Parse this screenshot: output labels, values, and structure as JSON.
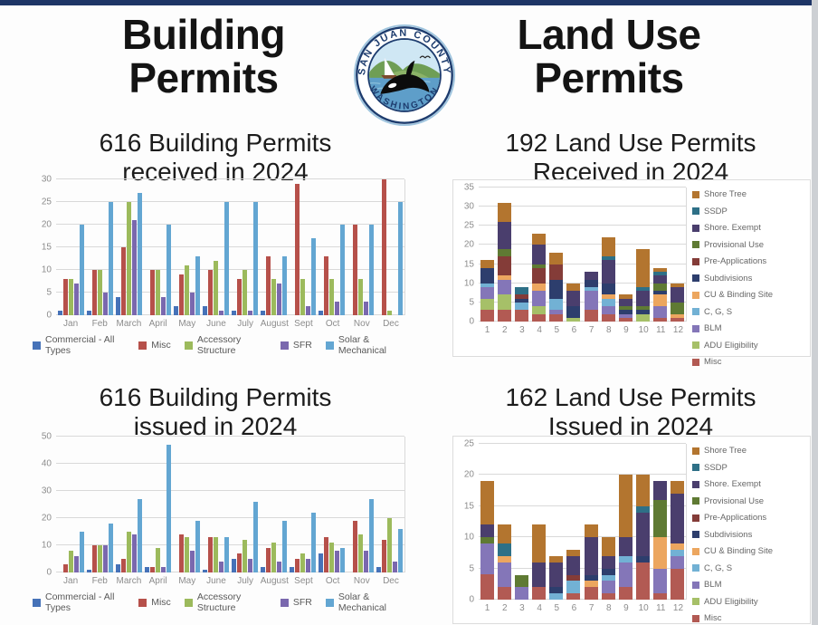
{
  "colors": {
    "accent_navy": "#1e3566",
    "logo_navy": "#1d3c6e",
    "axis_text": "#8c8c8c",
    "gridline": "#d9d9d9"
  },
  "header": {
    "left_title_line1": "Building",
    "left_title_line2": "Permits",
    "right_title_line1": "Land Use",
    "right_title_line2": "Permits"
  },
  "logo": {
    "arc_top": "SAN JUAN COUNTY",
    "arc_bottom": "WASHINGTON"
  },
  "chart_data": [
    {
      "type": "bar",
      "variant": "grouped",
      "title_line1": "616 Building Permits",
      "title_line2": "received in 2024",
      "ylim": [
        0,
        30
      ],
      "ystep": 5,
      "grid": true,
      "legend_position": "bottom",
      "categories": [
        "Jan",
        "Feb",
        "March",
        "April",
        "May",
        "June",
        "July",
        "August",
        "Sept",
        "Oct",
        "Nov",
        "Dec"
      ],
      "series": [
        {
          "name": "Commercial - All Types",
          "color": "#4672b8",
          "values": [
            1,
            1,
            4,
            0,
            2,
            2,
            1,
            1,
            0,
            1,
            0,
            0
          ]
        },
        {
          "name": "Misc",
          "color": "#b6504a",
          "values": [
            8,
            10,
            15,
            10,
            9,
            10,
            8,
            13,
            29,
            13,
            20,
            30
          ]
        },
        {
          "name": "Accessory Structure",
          "color": "#9cba5c",
          "values": [
            8,
            10,
            25,
            10,
            11,
            12,
            10,
            8,
            8,
            8,
            8,
            1
          ]
        },
        {
          "name": "SFR",
          "color": "#7a68ae",
          "values": [
            7,
            5,
            21,
            4,
            5,
            1,
            1,
            7,
            2,
            3,
            3,
            0
          ]
        },
        {
          "name": "Solar & Mechanical",
          "color": "#63a6d2",
          "values": [
            20,
            25,
            27,
            20,
            13,
            25,
            25,
            13,
            17,
            20,
            20,
            25
          ]
        }
      ]
    },
    {
      "type": "bar",
      "variant": "stacked",
      "title_line1": "192 Land Use Permits",
      "title_line2": "Received in 2024",
      "ylim": [
        0,
        35
      ],
      "ystep": 5,
      "grid": true,
      "legend_position": "right",
      "categories": [
        "1",
        "2",
        "3",
        "4",
        "5",
        "6",
        "7",
        "8",
        "9",
        "10",
        "11",
        "12"
      ],
      "series": [
        {
          "name": "Shore Tree",
          "color": "#b3752f",
          "values": [
            2,
            5,
            0,
            3,
            3,
            2,
            0,
            5,
            1,
            10,
            1,
            1
          ]
        },
        {
          "name": "SSDP",
          "color": "#2e7087",
          "values": [
            0,
            0,
            2,
            0,
            0,
            0,
            0,
            1,
            0,
            1,
            1,
            0
          ]
        },
        {
          "name": "Shore. Exempt",
          "color": "#4a3e6d",
          "values": [
            0,
            7,
            0,
            5,
            0,
            4,
            2,
            6,
            2,
            4,
            2,
            4
          ]
        },
        {
          "name": "Provisional Use",
          "color": "#5f7a33",
          "values": [
            0,
            2,
            0,
            1,
            0,
            0,
            0,
            0,
            1,
            1,
            2,
            3
          ]
        },
        {
          "name": "Pre-Applications",
          "color": "#843c38",
          "values": [
            0,
            5,
            1,
            4,
            4,
            0,
            0,
            0,
            0,
            0,
            0,
            0
          ]
        },
        {
          "name": "Subdivisions",
          "color": "#2d3e6d",
          "values": [
            4,
            0,
            1,
            0,
            5,
            3,
            2,
            3,
            1,
            1,
            1,
            0
          ]
        },
        {
          "name": "CU & Binding Site",
          "color": "#eca65f",
          "values": [
            0,
            1,
            0,
            2,
            0,
            0,
            0,
            1,
            0,
            0,
            3,
            1
          ]
        },
        {
          "name": "C, G, S",
          "color": "#72b1d4",
          "values": [
            1,
            0,
            2,
            0,
            3,
            0,
            1,
            2,
            0,
            0,
            0,
            0
          ]
        },
        {
          "name": "BLM",
          "color": "#8476b8",
          "values": [
            3,
            4,
            0,
            4,
            1,
            0,
            5,
            2,
            1,
            0,
            3,
            0
          ]
        },
        {
          "name": "ADU Eligibility",
          "color": "#a6c068",
          "values": [
            3,
            4,
            0,
            2,
            0,
            1,
            0,
            0,
            0,
            2,
            0,
            0
          ]
        },
        {
          "name": "Misc",
          "color": "#b25a53",
          "values": [
            3,
            3,
            3,
            2,
            2,
            0,
            3,
            2,
            1,
            0,
            1,
            1
          ]
        }
      ]
    },
    {
      "type": "bar",
      "variant": "grouped",
      "title_line1": "616 Building Permits",
      "title_line2": "issued in 2024",
      "ylim": [
        0,
        50
      ],
      "ystep": 10,
      "grid": true,
      "legend_position": "bottom",
      "categories": [
        "Jan",
        "Feb",
        "March",
        "April",
        "May",
        "June",
        "July",
        "August",
        "Sept",
        "Oct",
        "Nov",
        "Dec"
      ],
      "series": [
        {
          "name": "Commercial - All Types",
          "color": "#4672b8",
          "values": [
            0,
            1,
            3,
            2,
            0,
            1,
            5,
            2,
            2,
            7,
            0,
            2
          ]
        },
        {
          "name": "Misc",
          "color": "#b6504a",
          "values": [
            3,
            10,
            5,
            2,
            14,
            13,
            7,
            9,
            5,
            13,
            19,
            12
          ]
        },
        {
          "name": "Accessory Structure",
          "color": "#9cba5c",
          "values": [
            8,
            10,
            15,
            9,
            13,
            13,
            12,
            11,
            7,
            11,
            14,
            20
          ]
        },
        {
          "name": "SFR",
          "color": "#7a68ae",
          "values": [
            6,
            10,
            14,
            2,
            8,
            4,
            5,
            4,
            5,
            8,
            8,
            4
          ]
        },
        {
          "name": "Solar & Mechanical",
          "color": "#63a6d2",
          "values": [
            15,
            18,
            27,
            47,
            19,
            13,
            26,
            19,
            22,
            9,
            27,
            16
          ]
        }
      ]
    },
    {
      "type": "bar",
      "variant": "stacked",
      "title_line1": "162 Land Use Permits",
      "title_line2": "Issued in 2024",
      "ylim": [
        0,
        25
      ],
      "ystep": 5,
      "grid": true,
      "legend_position": "right",
      "categories": [
        "1",
        "2",
        "3",
        "4",
        "5",
        "6",
        "7",
        "8",
        "9",
        "10",
        "11",
        "12"
      ],
      "series": [
        {
          "name": "Shore Tree",
          "color": "#b3752f",
          "values": [
            7,
            3,
            0,
            6,
            1,
            1,
            2,
            3,
            10,
            5,
            0,
            2
          ]
        },
        {
          "name": "SSDP",
          "color": "#2e7087",
          "values": [
            0,
            2,
            0,
            0,
            0,
            0,
            0,
            0,
            0,
            1,
            0,
            0
          ]
        },
        {
          "name": "Shore. Exempt",
          "color": "#4a3e6d",
          "values": [
            2,
            0,
            0,
            4,
            4,
            3,
            6,
            2,
            3,
            7,
            3,
            8
          ]
        },
        {
          "name": "Provisional Use",
          "color": "#5f7a33",
          "values": [
            1,
            0,
            2,
            0,
            0,
            0,
            0,
            0,
            0,
            0,
            6,
            0
          ]
        },
        {
          "name": "Pre-Applications",
          "color": "#843c38",
          "values": [
            0,
            0,
            0,
            0,
            0,
            1,
            0,
            0,
            0,
            0,
            0,
            0
          ]
        },
        {
          "name": "Subdivisions",
          "color": "#2d3e6d",
          "values": [
            0,
            0,
            0,
            0,
            1,
            0,
            1,
            1,
            0,
            1,
            0,
            0
          ]
        },
        {
          "name": "CU & Binding Site",
          "color": "#eca65f",
          "values": [
            0,
            1,
            0,
            0,
            0,
            0,
            1,
            0,
            0,
            0,
            5,
            1
          ]
        },
        {
          "name": "C, G, S",
          "color": "#72b1d4",
          "values": [
            0,
            0,
            0,
            0,
            1,
            2,
            0,
            1,
            1,
            0,
            0,
            1
          ]
        },
        {
          "name": "BLM",
          "color": "#8476b8",
          "values": [
            5,
            4,
            2,
            0,
            0,
            0,
            0,
            2,
            4,
            0,
            4,
            2
          ]
        },
        {
          "name": "ADU Eligibility",
          "color": "#a6c068",
          "values": [
            0,
            0,
            0,
            0,
            0,
            0,
            0,
            0,
            0,
            0,
            0,
            0
          ]
        },
        {
          "name": "Misc",
          "color": "#b25a53",
          "values": [
            4,
            2,
            0,
            2,
            0,
            1,
            2,
            1,
            2,
            6,
            1,
            5
          ]
        }
      ]
    }
  ]
}
